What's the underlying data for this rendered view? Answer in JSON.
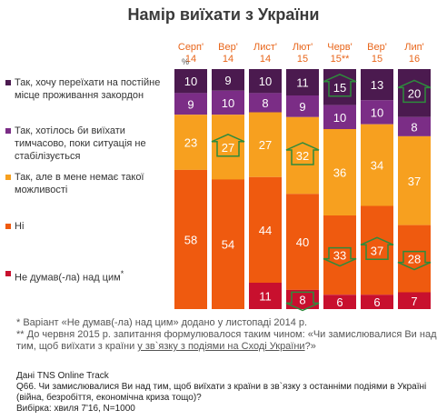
{
  "chart_data": {
    "type": "bar",
    "title": "Намір виїхати з України",
    "unit_label": "%",
    "categories": [
      [
        "Серп'",
        "14"
      ],
      [
        "Вер'",
        "14"
      ],
      [
        "Лист'",
        "14"
      ],
      [
        "Лют'",
        "15"
      ],
      [
        "Черв'",
        "15**"
      ],
      [
        "Вер'",
        "15"
      ],
      [
        "Лип'",
        "16"
      ]
    ],
    "series": [
      {
        "name": "Так, хочу переїхати на постійне місце проживання закордон",
        "color": "#4b1a4f",
        "values": [
          10,
          9,
          10,
          11,
          15,
          13,
          20
        ],
        "arrows": [
          null,
          null,
          null,
          null,
          "up",
          null,
          "up"
        ]
      },
      {
        "name": "Так, хотілось би виїхати тимчасово, поки ситуація не стабілізується",
        "color": "#7b2d86",
        "values": [
          9,
          10,
          8,
          9,
          10,
          10,
          8
        ],
        "arrows": [
          null,
          null,
          null,
          null,
          null,
          null,
          null
        ]
      },
      {
        "name": "Так, але в мене немає такої можливості",
        "color": "#f7a01f",
        "values": [
          23,
          27,
          27,
          32,
          36,
          34,
          37
        ],
        "arrows": [
          null,
          "up",
          null,
          "up",
          null,
          null,
          null
        ]
      },
      {
        "name": "Ні",
        "color": "#ef5a0f",
        "values": [
          58,
          54,
          44,
          40,
          33,
          37,
          28
        ],
        "arrows": [
          null,
          null,
          null,
          null,
          "down",
          "up",
          "down"
        ]
      },
      {
        "name": "Не думав(-ла) над цим",
        "name_mark": "*",
        "color": "#c8102e",
        "values": [
          null,
          null,
          11,
          8,
          6,
          6,
          7
        ],
        "arrows": [
          null,
          null,
          null,
          "down",
          null,
          null,
          null
        ]
      }
    ]
  },
  "notes": {
    "line1": "* Варіант «Не думав(-ла) над цим» додано у листопаді 2014 р.",
    "line2_a": "** До червня 2015 р. запитання формулювалося таким чином: «Чи замислювалися Ви над тим, щоб виїхати з країни ",
    "line2_u": "у зв`язку з подіями на Сході України",
    "line2_b": "?»"
  },
  "source": {
    "line1": "Дані TNS Online Track",
    "line2": "Q66. Чи замислювалися Ви над тим, щоб виїхати з країни в зв`язку з останніми подіями в Україні (війна, безробіття, економічна криза тощо)?",
    "line3": "Вибірка: хвиля 7'16, N=1000"
  },
  "colors": {
    "arrow": "#2e8b3c",
    "category_label": "#e8651a"
  }
}
